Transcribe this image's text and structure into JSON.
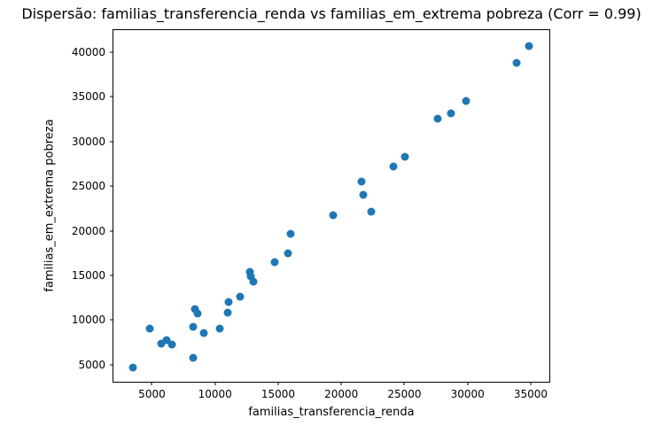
{
  "figure": {
    "background": "#ffffff",
    "axis_color": "#000000"
  },
  "chart_data": {
    "type": "scatter",
    "title": "Dispersão: familias_transferencia_renda vs familias_em_extrema pobreza (Corr = 0.99)",
    "xlabel": "familias_transferencia_renda",
    "ylabel": "familias_em_extrema pobreza",
    "correlation": 0.99,
    "marker_color": "#1f77b4",
    "grid": false,
    "legend": "none",
    "xlim": [
      1950,
      36480
    ],
    "ylim": [
      3100,
      42460
    ],
    "x_ticks": [
      5000,
      10000,
      15000,
      20000,
      25000,
      30000,
      35000
    ],
    "y_ticks": [
      5000,
      10000,
      15000,
      20000,
      25000,
      30000,
      35000,
      40000
    ],
    "points": [
      [
        3500,
        4650
      ],
      [
        4800,
        9000
      ],
      [
        5750,
        7400
      ],
      [
        6150,
        7800
      ],
      [
        6600,
        7250
      ],
      [
        8250,
        9200
      ],
      [
        8300,
        5800
      ],
      [
        8400,
        11200
      ],
      [
        8650,
        10700
      ],
      [
        9100,
        8550
      ],
      [
        10400,
        9050
      ],
      [
        11000,
        10800
      ],
      [
        11050,
        12050
      ],
      [
        12000,
        12650
      ],
      [
        12750,
        15350
      ],
      [
        12800,
        14850
      ],
      [
        13050,
        14300
      ],
      [
        14750,
        16500
      ],
      [
        15800,
        17500
      ],
      [
        16000,
        19700
      ],
      [
        19350,
        21700
      ],
      [
        21600,
        25500
      ],
      [
        21750,
        24050
      ],
      [
        22350,
        22150
      ],
      [
        24100,
        27150
      ],
      [
        25050,
        28300
      ],
      [
        27650,
        32550
      ],
      [
        28700,
        33100
      ],
      [
        29900,
        34550
      ],
      [
        33900,
        38800
      ],
      [
        34900,
        40700
      ]
    ]
  }
}
